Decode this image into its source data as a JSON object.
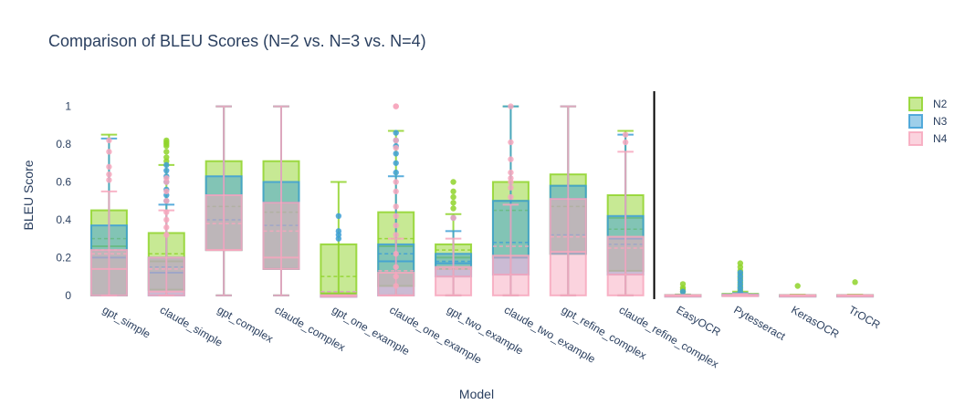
{
  "chart_data": {
    "type": "box",
    "title": "Comparison of BLEU Scores (N=2 vs. N=3 vs. N=4)",
    "xlabel": "Model",
    "ylabel": "BLEU Score",
    "ylim": [
      -0.02,
      1.08
    ],
    "yticks": [
      0,
      0.2,
      0.4,
      0.6,
      0.8,
      1
    ],
    "ytick_labels": [
      "0",
      "0.2",
      "0.4",
      "0.6",
      "0.8",
      "1"
    ],
    "grid": false,
    "legend_position": "top-right",
    "separator_after_category": "claude_refine_complex",
    "categories": [
      "gpt_simple",
      "claude_simple",
      "gpt_complex",
      "claude_complex",
      "gpt_one_example",
      "claude_one_example",
      "gpt_two_example",
      "claude_two_example",
      "gpt_refine_complex",
      "claude_refine_complex",
      "EasyOCR",
      "Pytesseract",
      "KerasOCR",
      "TrOCR"
    ],
    "series": [
      {
        "name": "N2",
        "color": "#8fd32a",
        "boxes": [
          {
            "lf": 0,
            "q1": 0,
            "med": 0.26,
            "mean": 0.3,
            "q3": 0.45,
            "uf": 0.85,
            "outliers": []
          },
          {
            "lf": 0,
            "q1": 0.03,
            "med": 0.18,
            "mean": 0.22,
            "q3": 0.33,
            "uf": 0.69,
            "outliers": [
              0.71,
              0.73,
              0.76,
              0.79,
              0.8,
              0.81,
              0.82
            ]
          },
          {
            "lf": 0,
            "q1": 0.24,
            "med": 0.53,
            "mean": 0.47,
            "q3": 0.71,
            "uf": 1,
            "outliers": []
          },
          {
            "lf": 0,
            "q1": 0.14,
            "med": 0.49,
            "mean": 0.44,
            "q3": 0.71,
            "uf": 1,
            "outliers": []
          },
          {
            "lf": 0,
            "q1": 0.01,
            "med": 0.01,
            "mean": 0.1,
            "q3": 0.27,
            "uf": 0.6,
            "outliers": []
          },
          {
            "lf": 0,
            "q1": 0.05,
            "med": 0.26,
            "mean": 0.3,
            "q3": 0.44,
            "uf": 0.87,
            "outliers": []
          },
          {
            "lf": 0,
            "q1": 0.14,
            "med": 0.2,
            "mean": 0.24,
            "q3": 0.27,
            "uf": 0.43,
            "outliers": [
              0.46,
              0.49,
              0.52,
              0.55,
              0.6
            ]
          },
          {
            "lf": 0,
            "q1": 0.2,
            "med": 0.5,
            "mean": 0.45,
            "q3": 0.6,
            "uf": 1,
            "outliers": []
          },
          {
            "lf": 0,
            "q1": 0.22,
            "med": 0.58,
            "mean": 0.47,
            "q3": 0.64,
            "uf": 1,
            "outliers": []
          },
          {
            "lf": 0,
            "q1": 0.13,
            "med": 0.41,
            "mean": 0.35,
            "q3": 0.53,
            "uf": 0.87,
            "outliers": []
          },
          {
            "lf": 0,
            "q1": 0,
            "med": 0,
            "mean": 0.003,
            "q3": 0.002,
            "uf": 0.005,
            "outliers": [
              0.02,
              0.03,
              0.04,
              0.06
            ]
          },
          {
            "lf": 0,
            "q1": 0,
            "med": 0.003,
            "mean": 0.008,
            "q3": 0.008,
            "uf": 0.02,
            "outliers": [
              0.03,
              0.05,
              0.07,
              0.09,
              0.11,
              0.13,
              0.15,
              0.17
            ]
          },
          {
            "lf": 0,
            "q1": 0,
            "med": 0,
            "mean": 0.002,
            "q3": 0.002,
            "uf": 0.004,
            "outliers": [
              0.05
            ]
          },
          {
            "lf": 0,
            "q1": 0,
            "med": 0,
            "mean": 0.002,
            "q3": 0.002,
            "uf": 0.004,
            "outliers": [
              0.07
            ]
          }
        ]
      },
      {
        "name": "N3",
        "color": "#3d9fd6",
        "boxes": [
          {
            "lf": 0,
            "q1": 0,
            "med": 0.2,
            "mean": 0.24,
            "q3": 0.37,
            "uf": 0.83,
            "outliers": []
          },
          {
            "lf": 0,
            "q1": 0,
            "med": 0.12,
            "mean": 0.15,
            "q3": 0.2,
            "uf": 0.48,
            "outliers": [
              0.5,
              0.53,
              0.56,
              0.6,
              0.63,
              0.66,
              0.69
            ]
          },
          {
            "lf": 0,
            "q1": 0.24,
            "med": 0.53,
            "mean": 0.4,
            "q3": 0.63,
            "uf": 1,
            "outliers": []
          },
          {
            "lf": 0,
            "q1": 0.14,
            "med": 0.49,
            "mean": 0.37,
            "q3": 0.6,
            "uf": 1,
            "outliers": []
          },
          {
            "lf": 0,
            "q1": 0,
            "med": 0,
            "mean": 0.02,
            "q3": 0,
            "uf": 0,
            "outliers": [
              0.3,
              0.32,
              0.34,
              0.42
            ]
          },
          {
            "lf": 0,
            "q1": 0,
            "med": 0.18,
            "mean": 0.22,
            "q3": 0.27,
            "uf": 0.63,
            "outliers": [
              0.65,
              0.7,
              0.75,
              0.79,
              0.82,
              0.86
            ]
          },
          {
            "lf": 0,
            "q1": 0.1,
            "med": 0.17,
            "mean": 0.18,
            "q3": 0.22,
            "uf": 0.34,
            "outliers": [
              0.41
            ]
          },
          {
            "lf": 0,
            "q1": 0.11,
            "med": 0.2,
            "mean": 0.28,
            "q3": 0.5,
            "uf": 1,
            "outliers": []
          },
          {
            "lf": 0,
            "q1": 0.22,
            "med": 0.51,
            "mean": 0.32,
            "q3": 0.58,
            "uf": 1,
            "outliers": []
          },
          {
            "lf": 0,
            "q1": 0.11,
            "med": 0.3,
            "mean": 0.27,
            "q3": 0.42,
            "uf": 0.85,
            "outliers": []
          },
          {
            "lf": 0,
            "q1": 0,
            "med": 0,
            "mean": 0.002,
            "q3": 0.001,
            "uf": 0.003,
            "outliers": [
              0.02
            ]
          },
          {
            "lf": 0,
            "q1": 0,
            "med": 0.002,
            "mean": 0.005,
            "q3": 0.005,
            "uf": 0.012,
            "outliers": [
              0.02,
              0.04,
              0.06,
              0.08,
              0.1,
              0.12
            ]
          },
          {
            "lf": 0,
            "q1": 0,
            "med": 0,
            "mean": 0.001,
            "q3": 0.001,
            "uf": 0.002,
            "outliers": []
          },
          {
            "lf": 0,
            "q1": 0,
            "med": 0,
            "mean": 0.001,
            "q3": 0.001,
            "uf": 0.002,
            "outliers": []
          }
        ]
      },
      {
        "name": "N4",
        "color": "#f7a7bd",
        "boxes": [
          {
            "lf": 0,
            "q1": 0,
            "med": 0.14,
            "mean": 0.22,
            "q3": 0.24,
            "uf": 0.55,
            "outliers": [
              0.61,
              0.64,
              0.68,
              0.76,
              0.82
            ]
          },
          {
            "lf": 0,
            "q1": 0,
            "med": 0.02,
            "mean": 0.14,
            "q3": 0.2,
            "uf": 0.45,
            "outliers": [
              0.32,
              0.36,
              0.4,
              0.44,
              0.5,
              0.55,
              0.6,
              0.62
            ]
          },
          {
            "lf": 0,
            "q1": 0.24,
            "med": 0.24,
            "mean": 0.38,
            "q3": 0.53,
            "uf": 1,
            "outliers": []
          },
          {
            "lf": 0,
            "q1": 0.14,
            "med": 0.2,
            "mean": 0.34,
            "q3": 0.49,
            "uf": 1,
            "outliers": []
          },
          {
            "lf": 0,
            "q1": 0,
            "med": 0,
            "mean": 0.02,
            "q3": 0,
            "uf": 0,
            "outliers": []
          },
          {
            "lf": 0,
            "q1": 0,
            "med": 0,
            "mean": 0.13,
            "q3": 0.12,
            "uf": 0.3,
            "outliers": [
              0.05,
              0.1,
              0.15,
              0.22,
              0.32,
              0.37,
              0.42,
              0.47,
              0.55,
              0.6,
              0.78,
              0.82,
              1,
              1
            ]
          },
          {
            "lf": 0,
            "q1": 0,
            "med": 0.1,
            "mean": 0.14,
            "q3": 0.15,
            "uf": 0.3,
            "outliers": [
              0.41
            ]
          },
          {
            "lf": 0,
            "q1": 0,
            "med": 0.11,
            "mean": 0.26,
            "q3": 0.21,
            "uf": 0.48,
            "outliers": [
              0.52,
              0.57,
              0.6,
              0.62,
              0.65,
              0.72,
              0.81,
              1
            ]
          },
          {
            "lf": 0,
            "q1": 0,
            "med": 0.23,
            "mean": 0.31,
            "q3": 0.51,
            "uf": 1,
            "outliers": []
          },
          {
            "lf": 0,
            "q1": 0,
            "med": 0.11,
            "mean": 0.25,
            "q3": 0.31,
            "uf": 0.76,
            "outliers": [
              0.81,
              0.85
            ]
          },
          {
            "lf": 0,
            "q1": 0,
            "med": 0,
            "mean": 0.001,
            "q3": 0.001,
            "uf": 0.002,
            "outliers": []
          },
          {
            "lf": 0,
            "q1": 0,
            "med": 0.001,
            "mean": 0.003,
            "q3": 0.003,
            "uf": 0.008,
            "outliers": []
          },
          {
            "lf": 0,
            "q1": 0,
            "med": 0,
            "mean": 0.001,
            "q3": 0.001,
            "uf": 0.001,
            "outliers": []
          },
          {
            "lf": 0,
            "q1": 0,
            "med": 0,
            "mean": 0.001,
            "q3": 0.001,
            "uf": 0.001,
            "outliers": []
          }
        ]
      }
    ]
  }
}
